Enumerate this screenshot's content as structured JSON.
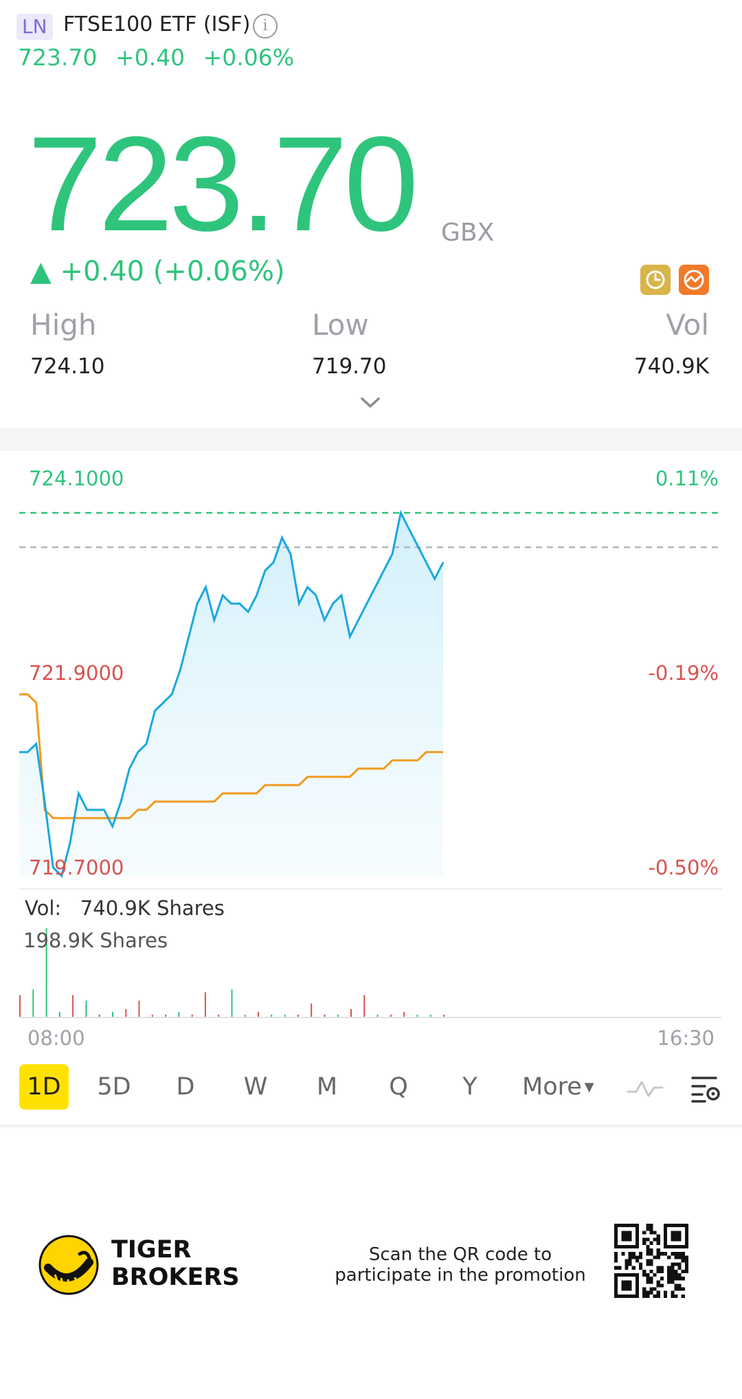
{
  "header": {
    "market": "LN",
    "title": "FTSE100 ETF (ISF)",
    "info_icon": "info-icon",
    "price": "723.70",
    "change": "+0.40",
    "change_pct": "+0.06%"
  },
  "quote": {
    "price": "723.70",
    "currency": "GBX",
    "change_line": "▲ +0.40 (+0.06%)",
    "icons": [
      "history-clock-icon",
      "chart-compare-icon"
    ]
  },
  "stats": {
    "high_label": "High",
    "high": "724.10",
    "low_label": "Low",
    "low": "719.70",
    "vol_label": "Vol",
    "vol": "740.9K"
  },
  "chart": {
    "y_top": "724.1000",
    "y_mid": "721.9000",
    "y_bottom": "719.7000",
    "pct_top": "0.11%",
    "pct_mid": "-0.19%",
    "pct_bottom": "-0.50%",
    "vol_line": "Vol:   740.9K Shares",
    "vol_max": "198.9K Shares",
    "time_start": "08:00",
    "time_end": "16:30"
  },
  "chart_data": {
    "type": "line",
    "title": "",
    "ylim": [
      719.7,
      724.1
    ],
    "series": [
      {
        "values": [
          721.2,
          721.2,
          721.3,
          720.6,
          719.8,
          719.7,
          720.1,
          720.7,
          720.5,
          720.5,
          720.5,
          720.3,
          720.6,
          721.0,
          721.2,
          721.3,
          721.7,
          721.8,
          721.9,
          722.2,
          722.6,
          723.0,
          723.2,
          722.8,
          723.1,
          723.0,
          723.0,
          722.9,
          723.1,
          723.4,
          723.5,
          723.8,
          723.6,
          723.0,
          723.2,
          723.1,
          722.8,
          723.0,
          723.1,
          722.6,
          722.8,
          723.0,
          723.2,
          723.4,
          723.6,
          724.1,
          723.9,
          723.7,
          723.5,
          723.3,
          723.5
        ]
      },
      {
        "values": [
          721.9,
          721.9,
          721.8,
          720.5,
          720.4,
          720.4,
          720.4,
          720.4,
          720.4,
          720.4,
          720.4,
          720.4,
          720.4,
          720.4,
          720.5,
          720.5,
          720.6,
          720.6,
          720.6,
          720.6,
          720.6,
          720.6,
          720.6,
          720.6,
          720.7,
          720.7,
          720.7,
          720.7,
          720.7,
          720.8,
          720.8,
          720.8,
          720.8,
          720.8,
          720.9,
          720.9,
          720.9,
          720.9,
          720.9,
          720.9,
          721.0,
          721.0,
          721.0,
          721.0,
          721.1,
          721.1,
          721.1,
          721.1,
          721.2,
          721.2,
          721.2
        ]
      }
    ],
    "volume": {
      "values": [
        0.8,
        1.0,
        3.2,
        0.2,
        0.8,
        0.6,
        0.1,
        0.2,
        0.3,
        0.6,
        0.1,
        0.1,
        0.2,
        0.1,
        0.9,
        0.1,
        1.0,
        0.1,
        0.2,
        0.1,
        0.1,
        0.1,
        0.5,
        0.1,
        0.1,
        0.3,
        0.8,
        0.1,
        0.1,
        0.2,
        0.1,
        0.1,
        0.1
      ],
      "colors": [
        "red",
        "green",
        "green",
        "green",
        "red",
        "green",
        "red",
        "green",
        "red",
        "red",
        "red",
        "red",
        "green",
        "red",
        "red",
        "red",
        "green",
        "green",
        "red",
        "green",
        "green",
        "red",
        "red",
        "red",
        "green",
        "red",
        "red",
        "green",
        "red",
        "red",
        "green",
        "green",
        "red"
      ]
    }
  },
  "timeframes": [
    "1D",
    "5D",
    "D",
    "W",
    "M",
    "Q",
    "Y"
  ],
  "timeframe_more": "More",
  "footer": {
    "brand_line1": "TIGER",
    "brand_line2": "BROKERS",
    "promo_line1": "Scan the QR code to",
    "promo_line2": "participate in the promotion"
  },
  "colors": {
    "up": "#2ec47c",
    "down": "#d9534f",
    "price_line": "#1aa7e0",
    "avg_line": "#f09a1e",
    "active_tab": "#ffe100"
  }
}
